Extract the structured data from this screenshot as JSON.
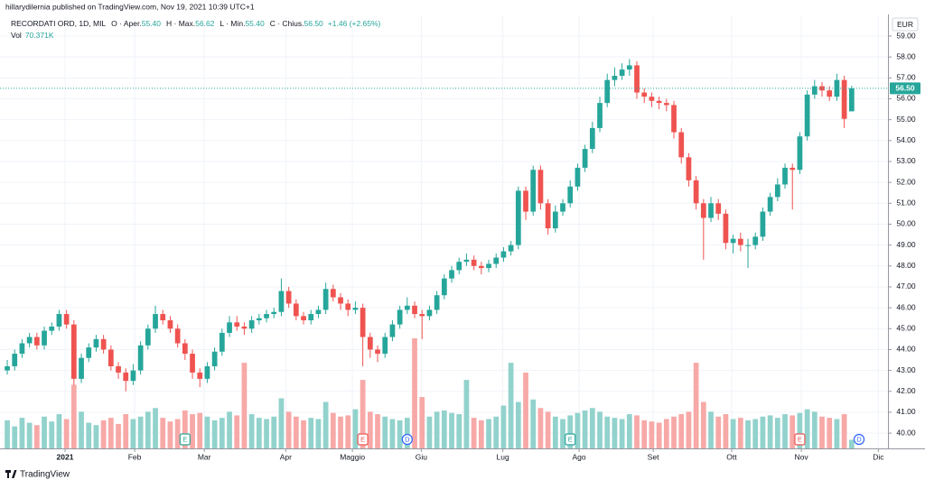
{
  "chart_data": {
    "type": "candlestick",
    "attribution": "hillarydilernia published on TradingView.com, Nov 19, 2021 10:39 UTC+1",
    "title": "RECORDATI ORD, 1D, MIL",
    "ohlc_legend": [
      {
        "label": "O · Aper.",
        "value": "55.40"
      },
      {
        "label": "H · Max.",
        "value": "56.62"
      },
      {
        "label": "L · Min.",
        "value": "55.40"
      },
      {
        "label": "C · Chius.",
        "value": "56.50"
      }
    ],
    "change": "+1.46 (+2.65%)",
    "volume_label": "Vol",
    "volume_value": "70.371K",
    "currency": "EUR",
    "last_price_label": "56.50",
    "logo": "TradingView",
    "up_color": "#26a69a",
    "down_color": "#ef5350",
    "volume_up_color": "#92d2cc",
    "volume_down_color": "#f7a9a7",
    "grid": true,
    "xlim": [
      -0.98,
      118.9
    ],
    "xticks": [
      {
        "value": 7.8,
        "label": "2021"
      },
      {
        "value": 17.2,
        "label": "Feb"
      },
      {
        "value": 26.6,
        "label": "Mar"
      },
      {
        "value": 37.6,
        "label": "Apr"
      },
      {
        "value": 46.6,
        "label": "Maggio"
      },
      {
        "value": 55.9,
        "label": "Giu"
      },
      {
        "value": 66.9,
        "label": "Lug"
      },
      {
        "value": 77.2,
        "label": "Ago"
      },
      {
        "value": 87.2,
        "label": "Set"
      },
      {
        "value": 97.8,
        "label": "Ott"
      },
      {
        "value": 107.2,
        "label": "Nov"
      },
      {
        "value": 117.6,
        "label": "Dic"
      }
    ],
    "ylim": [
      39.27,
      59.95
    ],
    "yticks": [
      {
        "value": 40,
        "label": "40.00"
      },
      {
        "value": 41,
        "label": "41.00"
      },
      {
        "value": 42,
        "label": "42.00"
      },
      {
        "value": 43,
        "label": "43.00"
      },
      {
        "value": 44,
        "label": "44.00"
      },
      {
        "value": 45,
        "label": "45.00"
      },
      {
        "value": 46,
        "label": "46.00"
      },
      {
        "value": 47,
        "label": "47.00"
      },
      {
        "value": 48,
        "label": "48.00"
      },
      {
        "value": 49,
        "label": "49.00"
      },
      {
        "value": 50,
        "label": "50.00"
      },
      {
        "value": 51,
        "label": "51.00"
      },
      {
        "value": 52,
        "label": "52.00"
      },
      {
        "value": 53,
        "label": "53.00"
      },
      {
        "value": 54,
        "label": "54.00"
      },
      {
        "value": 55,
        "label": "55.00"
      },
      {
        "value": 56,
        "label": "56.00"
      },
      {
        "value": 57,
        "label": "57.00"
      },
      {
        "value": 58,
        "label": "58.00"
      },
      {
        "value": 59,
        "label": "59.00"
      }
    ],
    "open": [
      43.0,
      43.2,
      43.8,
      44.3,
      44.6,
      44.2,
      44.9,
      45.1,
      45.7,
      45.2,
      42.6,
      43.6,
      44.1,
      44.5,
      44.0,
      43.2,
      42.9,
      42.5,
      43.0,
      44.2,
      45.0,
      45.7,
      45.4,
      45.0,
      44.3,
      43.8,
      42.9,
      42.6,
      43.2,
      43.9,
      44.8,
      45.3,
      45.1,
      45.0,
      45.4,
      45.5,
      45.7,
      45.8,
      46.8,
      46.2,
      45.6,
      45.4,
      45.7,
      45.9,
      46.9,
      46.5,
      46.2,
      45.9,
      46.0,
      44.6,
      44.0,
      43.8,
      44.6,
      45.2,
      45.9,
      46.1,
      45.7,
      45.6,
      45.9,
      46.6,
      47.4,
      47.8,
      48.2,
      48.3,
      48.0,
      47.9,
      48.1,
      48.4,
      48.7,
      49.0,
      51.6,
      50.6,
      52.6,
      51.0,
      49.8,
      50.6,
      51.0,
      51.8,
      52.7,
      53.6,
      54.6,
      55.8,
      56.9,
      57.1,
      57.4,
      57.6,
      56.3,
      56.1,
      55.9,
      55.8,
      55.7,
      54.4,
      53.2,
      52.1,
      51.0,
      50.3,
      51.0,
      50.5,
      49.1,
      49.3,
      49.0,
      49.0,
      49.4,
      50.6,
      51.3,
      51.9,
      52.7,
      52.6,
      54.2,
      56.2,
      56.6,
      56.4,
      56.1,
      56.9,
      55.4
    ],
    "high": [
      43.5,
      44.0,
      44.5,
      44.8,
      44.8,
      45.1,
      45.3,
      45.9,
      45.9,
      45.4,
      43.8,
      44.3,
      44.7,
      44.7,
      44.2,
      43.4,
      43.1,
      43.3,
      44.4,
      45.2,
      46.1,
      45.9,
      45.6,
      45.2,
      44.5,
      44.0,
      43.1,
      43.4,
      44.1,
      45.0,
      45.6,
      45.6,
      45.3,
      45.6,
      45.7,
      45.9,
      46.0,
      47.4,
      47.0,
      46.4,
      45.8,
      45.9,
      46.1,
      47.2,
      47.1,
      46.7,
      46.4,
      46.3,
      46.2,
      44.8,
      44.2,
      44.8,
      45.4,
      46.1,
      46.5,
      46.3,
      45.9,
      46.1,
      46.8,
      47.6,
      48.0,
      48.4,
      48.6,
      48.5,
      48.2,
      48.3,
      48.6,
      48.9,
      49.2,
      51.8,
      51.8,
      52.8,
      52.8,
      51.2,
      50.9,
      51.2,
      52.1,
      52.9,
      53.8,
      54.9,
      56.1,
      57.2,
      57.5,
      57.7,
      57.9,
      57.8,
      56.5,
      56.3,
      56.1,
      56.0,
      55.9,
      54.6,
      53.4,
      52.3,
      51.2,
      51.3,
      51.2,
      50.7,
      49.5,
      49.6,
      49.3,
      49.6,
      50.8,
      51.5,
      52.2,
      52.9,
      52.9,
      54.4,
      56.4,
      56.9,
      56.8,
      56.6,
      57.2,
      57.1,
      56.62
    ],
    "low": [
      42.8,
      43.0,
      43.6,
      44.1,
      44.0,
      44.0,
      44.7,
      44.9,
      45.0,
      42.3,
      42.4,
      43.4,
      43.9,
      43.8,
      43.0,
      42.6,
      42.0,
      42.3,
      42.8,
      44.0,
      44.8,
      45.2,
      44.8,
      44.1,
      43.5,
      42.6,
      42.2,
      42.4,
      43.0,
      43.7,
      44.6,
      44.9,
      44.7,
      44.8,
      45.2,
      45.3,
      45.5,
      45.6,
      46.0,
      45.4,
      45.2,
      45.2,
      45.5,
      45.7,
      46.3,
      45.9,
      45.6,
      45.7,
      43.2,
      43.6,
      43.4,
      43.6,
      44.4,
      45.0,
      45.7,
      45.5,
      44.5,
      45.4,
      45.7,
      46.4,
      47.2,
      47.6,
      48.0,
      47.8,
      47.6,
      47.7,
      47.9,
      48.2,
      48.5,
      48.8,
      50.2,
      50.4,
      50.7,
      49.5,
      49.6,
      50.4,
      50.8,
      51.6,
      52.5,
      53.4,
      54.4,
      55.6,
      56.6,
      56.9,
      57.1,
      56.0,
      55.8,
      55.6,
      55.5,
      55.4,
      54.1,
      52.9,
      51.8,
      50.7,
      48.3,
      50.1,
      50.2,
      48.8,
      48.6,
      48.7,
      47.9,
      48.8,
      49.2,
      50.4,
      51.1,
      51.7,
      50.7,
      52.4,
      54.0,
      56.0,
      56.1,
      55.9,
      55.9,
      54.6,
      55.4
    ],
    "close": [
      43.2,
      43.8,
      44.3,
      44.6,
      44.2,
      44.9,
      45.1,
      45.7,
      45.2,
      42.6,
      43.6,
      44.1,
      44.5,
      44.0,
      43.2,
      42.9,
      42.5,
      43.0,
      44.2,
      45.0,
      45.7,
      45.4,
      45.0,
      44.3,
      43.8,
      42.9,
      42.6,
      43.2,
      43.9,
      44.8,
      45.3,
      45.1,
      45.0,
      45.4,
      45.5,
      45.7,
      45.8,
      46.8,
      46.2,
      45.6,
      45.4,
      45.7,
      45.9,
      46.9,
      46.5,
      46.2,
      45.9,
      46.0,
      44.6,
      44.0,
      43.8,
      44.6,
      45.2,
      45.9,
      46.1,
      45.7,
      45.6,
      45.9,
      46.6,
      47.4,
      47.8,
      48.2,
      48.3,
      48.0,
      47.9,
      48.1,
      48.4,
      48.7,
      49.0,
      51.6,
      50.6,
      52.6,
      51.0,
      49.8,
      50.6,
      51.0,
      51.8,
      52.7,
      53.6,
      54.6,
      55.8,
      56.9,
      57.1,
      57.4,
      57.6,
      56.3,
      56.1,
      55.9,
      55.8,
      55.7,
      54.4,
      53.2,
      52.1,
      51.0,
      50.3,
      51.0,
      50.5,
      49.1,
      49.3,
      49.0,
      49.0,
      49.4,
      50.6,
      51.3,
      51.9,
      52.7,
      52.6,
      54.2,
      56.2,
      56.6,
      56.4,
      56.1,
      56.9,
      55.04,
      56.5
    ],
    "volume": [
      230,
      180,
      250,
      210,
      190,
      260,
      220,
      280,
      240,
      520,
      300,
      210,
      190,
      230,
      250,
      200,
      280,
      240,
      260,
      300,
      330,
      250,
      220,
      240,
      310,
      280,
      290,
      260,
      230,
      250,
      300,
      270,
      700,
      280,
      250,
      240,
      260,
      410,
      300,
      260,
      230,
      250,
      240,
      380,
      290,
      260,
      270,
      320,
      560,
      300,
      280,
      260,
      240,
      230,
      250,
      900,
      420,
      260,
      300,
      310,
      290,
      280,
      560,
      250,
      230,
      240,
      260,
      350,
      700,
      380,
      620,
      400,
      330,
      300,
      260,
      240,
      270,
      290,
      310,
      330,
      300,
      260,
      250,
      240,
      280,
      270,
      230,
      220,
      210,
      240,
      260,
      280,
      300,
      700,
      380,
      300,
      260,
      280,
      240,
      250,
      230,
      240,
      260,
      270,
      250,
      280,
      270,
      290,
      320,
      300,
      260,
      250,
      240,
      280,
      70.371
    ],
    "events": [
      {
        "x": 24,
        "label": "E",
        "color": "#26a69a"
      },
      {
        "x": 48,
        "label": "E",
        "color": "#ef5350"
      },
      {
        "x": 54,
        "label": "D",
        "color": "#2962ff"
      },
      {
        "x": 76,
        "label": "E",
        "color": "#26a69a"
      },
      {
        "x": 107,
        "label": "E",
        "color": "#ef5350"
      },
      {
        "x": 115,
        "label": "D",
        "color": "#2962ff"
      }
    ]
  }
}
